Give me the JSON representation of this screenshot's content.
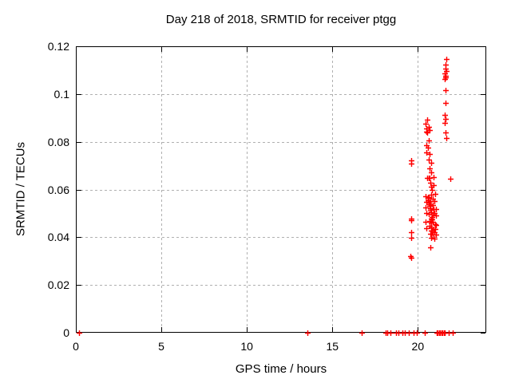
{
  "window": {
    "background": "#ffffff"
  },
  "chart_data": {
    "type": "scatter",
    "title": "Day 218 of 2018, SRMTID for receiver ptgg",
    "xlabel": "GPS time / hours",
    "ylabel": "SRMTID / TECUs",
    "xlim": [
      0,
      24
    ],
    "ylim": [
      0,
      0.12
    ],
    "xticks": {
      "values": [
        0,
        5,
        10,
        15,
        20
      ],
      "labels": [
        "0",
        "5",
        "10",
        "15",
        "20"
      ]
    },
    "yticks": {
      "values": [
        0,
        0.02,
        0.04,
        0.06,
        0.08,
        0.1,
        0.12
      ],
      "labels": [
        "0",
        "0.02",
        "0.04",
        "0.06",
        "0.08",
        "0.1",
        "0.12"
      ]
    },
    "grid": true,
    "grid_color": "#b0b0b0",
    "frame_color": "#000000",
    "legend": "none",
    "marker": {
      "shape": "plus",
      "color": "#ff0000",
      "size": 7
    },
    "series": [
      {
        "name": "SRMTID",
        "points": [
          [
            21.68,
            0.1148
          ],
          [
            21.6,
            0.1122
          ],
          [
            21.6,
            0.1105
          ],
          [
            21.68,
            0.1098
          ],
          [
            21.57,
            0.1086
          ],
          [
            21.62,
            0.1076
          ],
          [
            21.64,
            0.1068
          ],
          [
            21.58,
            0.1062
          ],
          [
            21.62,
            0.1016
          ],
          [
            21.63,
            0.0962
          ],
          [
            21.57,
            0.0911
          ],
          [
            21.6,
            0.0896
          ],
          [
            21.57,
            0.088
          ],
          [
            21.62,
            0.0838
          ],
          [
            21.65,
            0.0815
          ],
          [
            20.56,
            0.0891
          ],
          [
            20.45,
            0.0877
          ],
          [
            20.63,
            0.0863
          ],
          [
            20.48,
            0.0855
          ],
          [
            20.68,
            0.085
          ],
          [
            20.52,
            0.0844
          ],
          [
            20.56,
            0.0838
          ],
          [
            20.63,
            0.0806
          ],
          [
            20.52,
            0.0786
          ],
          [
            20.59,
            0.0776
          ],
          [
            20.5,
            0.0756
          ],
          [
            20.68,
            0.075
          ],
          [
            20.63,
            0.0726
          ],
          [
            20.79,
            0.0712
          ],
          [
            20.68,
            0.069
          ],
          [
            20.79,
            0.0671
          ],
          [
            19.59,
            0.0722
          ],
          [
            19.6,
            0.0708
          ],
          [
            20.56,
            0.0648
          ],
          [
            20.63,
            0.0649
          ],
          [
            20.7,
            0.0647
          ],
          [
            20.93,
            0.0651
          ],
          [
            21.91,
            0.0645
          ],
          [
            20.75,
            0.0628
          ],
          [
            20.93,
            0.0619
          ],
          [
            20.77,
            0.0611
          ],
          [
            20.84,
            0.0598
          ],
          [
            21.03,
            0.0583
          ],
          [
            20.77,
            0.0578
          ],
          [
            20.6,
            0.0568
          ],
          [
            20.66,
            0.0566
          ],
          [
            20.87,
            0.0561
          ],
          [
            20.72,
            0.0552
          ],
          [
            20.98,
            0.0552
          ],
          [
            20.7,
            0.0539
          ],
          [
            20.87,
            0.0536
          ],
          [
            20.72,
            0.0522
          ],
          [
            20.93,
            0.0519
          ],
          [
            21.07,
            0.0519
          ],
          [
            20.77,
            0.0506
          ],
          [
            20.98,
            0.0502
          ],
          [
            20.87,
            0.0494
          ],
          [
            21.07,
            0.0491
          ],
          [
            20.47,
            0.057
          ],
          [
            20.5,
            0.0548
          ],
          [
            20.61,
            0.0555
          ],
          [
            20.65,
            0.0545
          ],
          [
            20.68,
            0.053
          ],
          [
            20.47,
            0.0525
          ],
          [
            20.75,
            0.0515
          ],
          [
            20.5,
            0.05
          ],
          [
            20.66,
            0.0497
          ],
          [
            20.82,
            0.0485
          ],
          [
            20.76,
            0.0478
          ],
          [
            20.83,
            0.0475
          ],
          [
            20.7,
            0.0467
          ],
          [
            20.87,
            0.0463
          ],
          [
            20.99,
            0.0456
          ],
          [
            20.76,
            0.046
          ],
          [
            21.07,
            0.045
          ],
          [
            20.7,
            0.0448
          ],
          [
            20.8,
            0.0441
          ],
          [
            20.93,
            0.0436
          ],
          [
            20.47,
            0.0463
          ],
          [
            20.5,
            0.0438
          ],
          [
            21.03,
            0.0433
          ],
          [
            20.78,
            0.0428
          ],
          [
            20.84,
            0.0427
          ],
          [
            20.95,
            0.0422
          ],
          [
            20.72,
            0.0413
          ],
          [
            20.87,
            0.0411
          ],
          [
            21.07,
            0.0411
          ],
          [
            20.8,
            0.0398
          ],
          [
            20.98,
            0.0394
          ],
          [
            20.74,
            0.0357
          ],
          [
            19.59,
            0.0478
          ],
          [
            19.62,
            0.0471
          ],
          [
            19.59,
            0.0422
          ],
          [
            19.63,
            0.0397
          ],
          [
            19.57,
            0.0321
          ],
          [
            19.6,
            0.0314
          ],
          [
            0.2,
            0
          ],
          [
            13.52,
            0
          ],
          [
            16.7,
            0
          ],
          [
            18.1,
            0
          ],
          [
            18.22,
            0
          ],
          [
            18.4,
            0
          ],
          [
            18.72,
            0
          ],
          [
            18.85,
            0
          ],
          [
            19.1,
            0
          ],
          [
            19.25,
            0
          ],
          [
            19.47,
            0
          ],
          [
            19.75,
            0
          ],
          [
            19.94,
            0
          ],
          [
            20.41,
            0
          ],
          [
            21.1,
            0
          ],
          [
            21.17,
            0
          ],
          [
            21.24,
            0
          ],
          [
            21.31,
            0
          ],
          [
            21.38,
            0
          ],
          [
            21.45,
            0
          ],
          [
            21.52,
            0
          ],
          [
            21.59,
            0
          ],
          [
            21.8,
            0
          ],
          [
            22.02,
            0
          ]
        ]
      }
    ]
  }
}
